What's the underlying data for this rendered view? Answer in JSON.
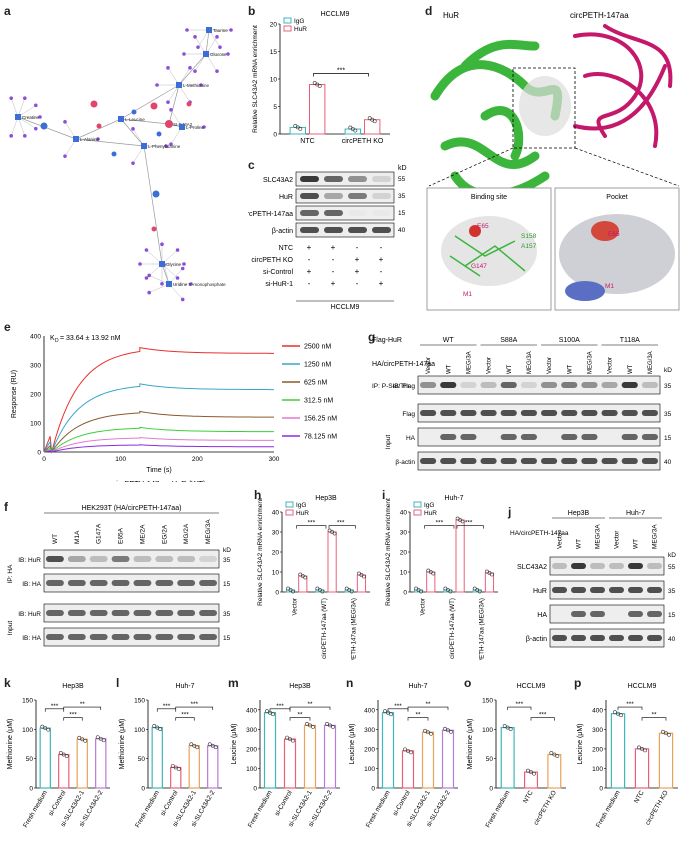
{
  "panels": {
    "a": {
      "letter": "a",
      "nodes": [
        "Creatine",
        "L-Alanine",
        "L-Leucine",
        "SLC43A2",
        "L-Methionine",
        "L-Proline",
        "L-Phenylalanine",
        "Glucose",
        "Taurine",
        "Glycine",
        "Uridine 5'-monophosphate"
      ]
    },
    "b": {
      "letter": "b",
      "title": "HCCLM9",
      "ylabel": "Relative SLC43A2 mRNA enrichment",
      "legend": [
        "IgG",
        "HuR"
      ],
      "sig": "***",
      "yticks": [
        "0",
        "5",
        "10",
        "15",
        "20"
      ]
    },
    "c": {
      "letter": "c",
      "kd": "kD",
      "blots": [
        {
          "name": "SLC43A2",
          "kd": "55"
        },
        {
          "name": "HuR",
          "kd": "35"
        },
        {
          "name": "circPETH-147aa",
          "kd": "15"
        },
        {
          "name": "β-actin",
          "kd": "40"
        }
      ],
      "rows": [
        {
          "name": "NTC",
          "signs": [
            "+",
            "+",
            "-",
            "-"
          ]
        },
        {
          "name": "circPETH KO",
          "signs": [
            "-",
            "-",
            "+",
            "+"
          ]
        },
        {
          "name": "si-Control",
          "signs": [
            "+",
            "-",
            "+",
            "-"
          ]
        },
        {
          "name": "si-HuR-1",
          "signs": [
            "-",
            "+",
            "-",
            "+"
          ]
        }
      ],
      "cell": "HCCLM9"
    },
    "d": {
      "letter": "d",
      "left": "HuR",
      "right": "circPETH-147aa",
      "zoom1": "Binding site",
      "zoom2": "Pocket",
      "res": [
        "E65",
        "S158",
        "A157",
        "G147",
        "M1"
      ]
    },
    "e": {
      "letter": "e",
      "title": "circPETH-147aa_HuR (WT)",
      "kd": "K",
      "kd_sub": "D",
      "kd_val": " = 33.64 ± 13.92 nM",
      "ylabel": "Response (RU)",
      "xlabel": "Time (s)",
      "yticks": [
        "0",
        "100",
        "200",
        "300",
        "400"
      ],
      "xticks": [
        "0",
        "100",
        "200",
        "300"
      ],
      "legend": [
        "2500 nM",
        "1250 nM",
        "625 nM",
        "312.5 nM",
        "156.25 nM",
        "78.125 nM"
      ]
    },
    "f": {
      "letter": "f",
      "header": "HEK293T (HA/circPETH-147aa)",
      "lanes": [
        "WT",
        "M1A",
        "G147A",
        "E65A",
        "ME/2A",
        "EG/2A",
        "MG/2A",
        "MEG/3A"
      ],
      "ip": "IP: HA",
      "input": "Input",
      "rows": [
        "IB: HuR",
        "IB: HA",
        "IB: HuR",
        "IB: HA"
      ],
      "kd": "kD",
      "kds": [
        "35",
        "15",
        "35",
        "15"
      ]
    },
    "g": {
      "letter": "g",
      "flag": "Flag-HuR",
      "groups": [
        "WT",
        "S88A",
        "S100A",
        "T118A"
      ],
      "ha": "HA/circPETH-147aa",
      "lanes": [
        "Vector",
        "WT",
        "MEG/3A"
      ],
      "ip": "IP: P-Ser/Thr",
      "input": "Input",
      "rows": [
        "IB: Flag",
        "Flag",
        "HA",
        "β-actin"
      ],
      "kd": "kD",
      "kds": [
        "35",
        "35",
        "15",
        "40"
      ]
    },
    "h": {
      "letter": "h",
      "title": "Hep3B",
      "ylabel": "Relative SLC43A2 mRNA enrichment",
      "legend": [
        "IgG",
        "HuR"
      ],
      "groups": [
        "Vector",
        "circPETH-147aa (WT)",
        "circPETH-147aa (MEG/3A)"
      ],
      "sig": [
        "***",
        "***"
      ],
      "yticks": [
        "0",
        "10",
        "20",
        "30",
        "40"
      ]
    },
    "i": {
      "letter": "i",
      "title": "Huh-7",
      "ylabel": "Relative SLC43A2 mRNA enrichment",
      "legend": [
        "IgG",
        "HuR"
      ],
      "groups": [
        "Vector",
        "circPETH-147aa (WT)",
        "circPETH-147aa (MEG/3A)"
      ],
      "sig": [
        "***",
        "***"
      ],
      "yticks": [
        "0",
        "10",
        "20",
        "30",
        "40"
      ]
    },
    "j": {
      "letter": "j",
      "cells": [
        "Hep3B",
        "Huh-7"
      ],
      "ha": "HA/circPETH-147aa",
      "lanes": [
        "Vector",
        "WT",
        "MEG/3A"
      ],
      "rows": [
        "SLC43A2",
        "HuR",
        "HA",
        "β-actin"
      ],
      "kd": "kD",
      "kds": [
        "55",
        "35",
        "15",
        "40"
      ]
    }
  },
  "chart_data": [
    {
      "type": "bar",
      "panel": "b",
      "title": "HCCLM9",
      "ylabel": "Relative SLC43A2 mRNA enrichment",
      "ylim": [
        0,
        20
      ],
      "categories": [
        "NTC",
        "circPETH KO"
      ],
      "series": [
        {
          "name": "IgG",
          "values": [
            1.2,
            0.9
          ]
        },
        {
          "name": "HuR",
          "values": [
            9.0,
            2.6
          ]
        }
      ]
    },
    {
      "type": "line",
      "panel": "e",
      "ylabel": "Response (RU)",
      "xlabel": "Time (s)",
      "ylim": [
        0,
        400
      ],
      "xlim": [
        0,
        300
      ],
      "series": [
        {
          "name": "2500 nM",
          "color": "#e8312b",
          "peak": 360,
          "end": 340
        },
        {
          "name": "1250 nM",
          "color": "#3aa7c9",
          "peak": 235,
          "end": 215
        },
        {
          "name": "625 nM",
          "color": "#8b5a2b",
          "peak": 140,
          "end": 120
        },
        {
          "name": "312.5 nM",
          "color": "#3ccf3c",
          "peak": 85,
          "end": 70
        },
        {
          "name": "156.25 nM",
          "color": "#e07bd0",
          "peak": 50,
          "end": 40
        },
        {
          "name": "78.125 nM",
          "color": "#8a2be2",
          "peak": 25,
          "end": 18
        }
      ]
    },
    {
      "type": "bar",
      "panel": "h",
      "title": "Hep3B",
      "ylim": [
        0,
        40
      ],
      "categories": [
        "Vector",
        "circPETH-147aa (WT)",
        "circPETH-147aa (MEG/3A)"
      ],
      "series": [
        {
          "name": "IgG",
          "values": [
            1,
            1,
            1
          ]
        },
        {
          "name": "HuR",
          "values": [
            8,
            30,
            8.5
          ]
        }
      ]
    },
    {
      "type": "bar",
      "panel": "i",
      "title": "Huh-7",
      "ylim": [
        0,
        40
      ],
      "categories": [
        "Vector",
        "circPETH-147aa (WT)",
        "circPETH-147aa (MEG/3A)"
      ],
      "series": [
        {
          "name": "IgG",
          "values": [
            1,
            1,
            1
          ]
        },
        {
          "name": "HuR",
          "values": [
            10,
            36,
            9.5
          ]
        }
      ]
    },
    {
      "type": "bar",
      "panel": "k",
      "title": "Hep3B",
      "ylabel": "Methionine (μM)",
      "ylim": [
        0,
        150
      ],
      "yticks": [
        "0",
        "50",
        "100",
        "150"
      ],
      "categories": [
        "Fresh medium",
        "si-Control",
        "si-SLC43A2-1",
        "si-SLC43A2-2"
      ],
      "values": [
        102,
        57,
        83,
        84
      ],
      "colors": [
        "#3fb6ba",
        "#e8607a",
        "#e8a25a",
        "#b87ad8"
      ],
      "sig": [
        "***",
        "***",
        "**"
      ]
    },
    {
      "type": "bar",
      "panel": "l",
      "title": "Huh-7",
      "ylabel": "Methionine (μM)",
      "ylim": [
        0,
        150
      ],
      "yticks": [
        "0",
        "50",
        "100",
        "150"
      ],
      "categories": [
        "Fresh medium",
        "si-Control",
        "si-SLC43A2-1",
        "si-SLC43A2-2"
      ],
      "values": [
        103,
        35,
        72,
        72
      ],
      "colors": [
        "#3fb6ba",
        "#e8607a",
        "#e8a25a",
        "#b87ad8"
      ],
      "sig": [
        "***",
        "***",
        "***"
      ]
    },
    {
      "type": "bar",
      "panel": "m",
      "title": "Hep3B",
      "ylabel": "Leucine (μM)",
      "ylim": [
        0,
        450
      ],
      "yticks": [
        "0",
        "100",
        "200",
        "300",
        "400"
      ],
      "categories": [
        "Fresh medium",
        "si-Control",
        "si-SLC43A2-1",
        "si-SLC43A2-2"
      ],
      "values": [
        385,
        250,
        320,
        320
      ],
      "colors": [
        "#3fb6ba",
        "#e8607a",
        "#e8a25a",
        "#b87ad8"
      ],
      "sig": [
        "***",
        "**",
        "**"
      ]
    },
    {
      "type": "bar",
      "panel": "n",
      "title": "Huh-7",
      "ylabel": "Leucine (μM)",
      "ylim": [
        0,
        450
      ],
      "yticks": [
        "0",
        "100",
        "200",
        "300",
        "400"
      ],
      "categories": [
        "Fresh medium",
        "si-Control",
        "si-SLC43A2-1",
        "si-SLC43A2-2"
      ],
      "values": [
        385,
        190,
        285,
        295
      ],
      "colors": [
        "#3fb6ba",
        "#e8607a",
        "#e8a25a",
        "#b87ad8"
      ],
      "sig": [
        "***",
        "**",
        "**"
      ]
    },
    {
      "type": "bar",
      "panel": "o",
      "title": "HCCLM9",
      "ylabel": "Methionine (μM)",
      "ylim": [
        0,
        150
      ],
      "yticks": [
        "0",
        "50",
        "100",
        "150"
      ],
      "categories": [
        "Fresh medium",
        "NTC",
        "circPETH KO"
      ],
      "values": [
        103,
        27,
        57
      ],
      "colors": [
        "#3fb6ba",
        "#e8607a",
        "#e8a25a"
      ],
      "sig": [
        "***",
        "***"
      ]
    },
    {
      "type": "bar",
      "panel": "p",
      "title": "HCCLM9",
      "ylabel": "Leucine (μM)",
      "ylim": [
        0,
        450
      ],
      "yticks": [
        "0",
        "100",
        "200",
        "300",
        "400"
      ],
      "categories": [
        "Fresh medium",
        "NTC",
        "circPETH KO"
      ],
      "values": [
        380,
        200,
        280
      ],
      "colors": [
        "#3fb6ba",
        "#e8607a",
        "#e8a25a"
      ],
      "sig": [
        "***",
        "**"
      ]
    }
  ]
}
